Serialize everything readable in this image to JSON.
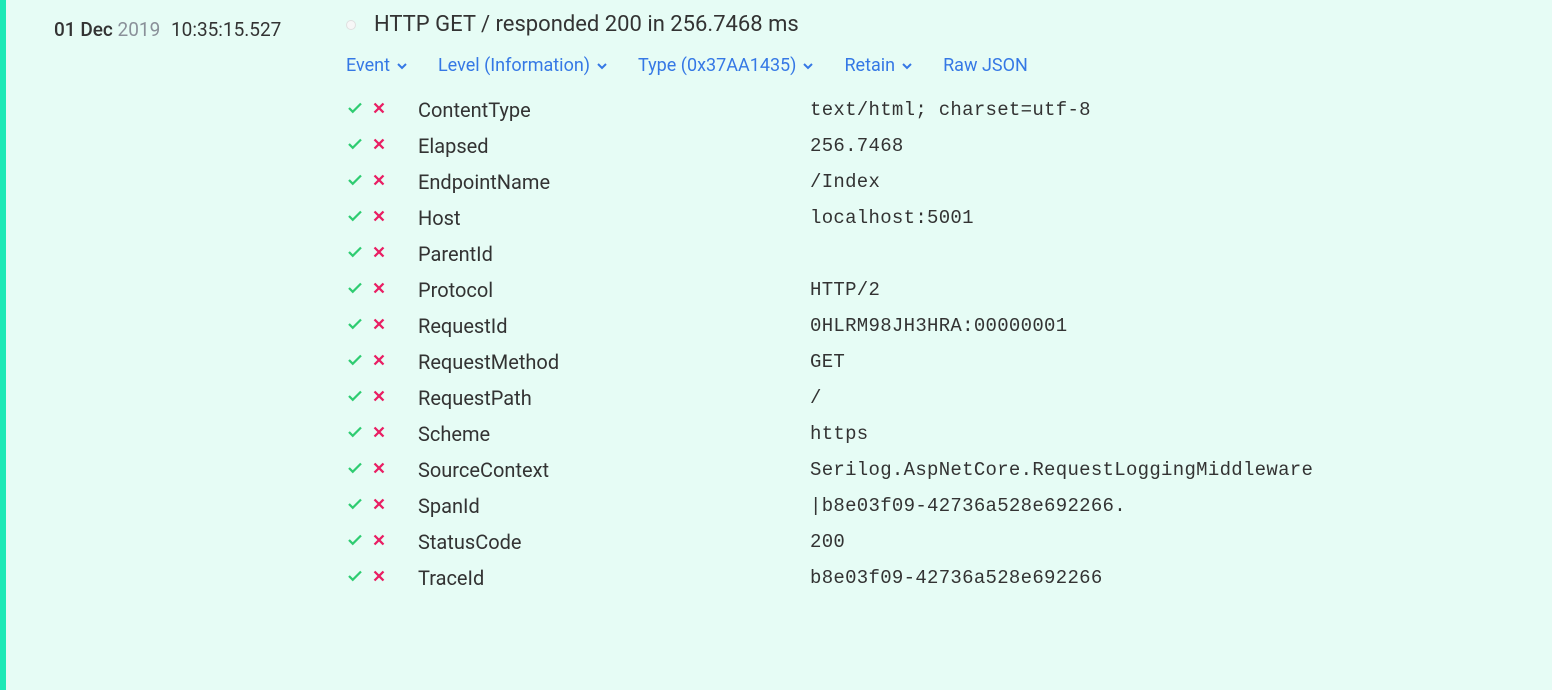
{
  "entry": {
    "timestamp": {
      "date_day": "01 Dec",
      "year": "2019",
      "time": "10:35:15.527"
    },
    "message": "HTTP GET / responded 200 in 256.7468 ms",
    "actions": {
      "event": "Event",
      "level": "Level (Information)",
      "type": "Type (0x37AA1435)",
      "retain": "Retain",
      "raw_json": "Raw JSON"
    },
    "properties": [
      {
        "name": "ContentType",
        "value": "text/html; charset=utf-8"
      },
      {
        "name": "Elapsed",
        "value": "256.7468"
      },
      {
        "name": "EndpointName",
        "value": "/Index"
      },
      {
        "name": "Host",
        "value": "localhost:5001"
      },
      {
        "name": "ParentId",
        "value": ""
      },
      {
        "name": "Protocol",
        "value": "HTTP/2"
      },
      {
        "name": "RequestId",
        "value": "0HLRM98JH3HRA:00000001"
      },
      {
        "name": "RequestMethod",
        "value": "GET"
      },
      {
        "name": "RequestPath",
        "value": "/"
      },
      {
        "name": "Scheme",
        "value": "https"
      },
      {
        "name": "SourceContext",
        "value": "Serilog.AspNetCore.RequestLoggingMiddleware"
      },
      {
        "name": "SpanId",
        "value": "|b8e03f09-42736a528e692266."
      },
      {
        "name": "StatusCode",
        "value": "200"
      },
      {
        "name": "TraceId",
        "value": "b8e03f09-42736a528e692266"
      }
    ]
  },
  "colors": {
    "background": "#e6fcf5",
    "accent_bar": "#1de9b6",
    "link": "#3578e5",
    "check": "#2ecc71",
    "cross": "#e91e63",
    "muted": "#8a9099"
  }
}
